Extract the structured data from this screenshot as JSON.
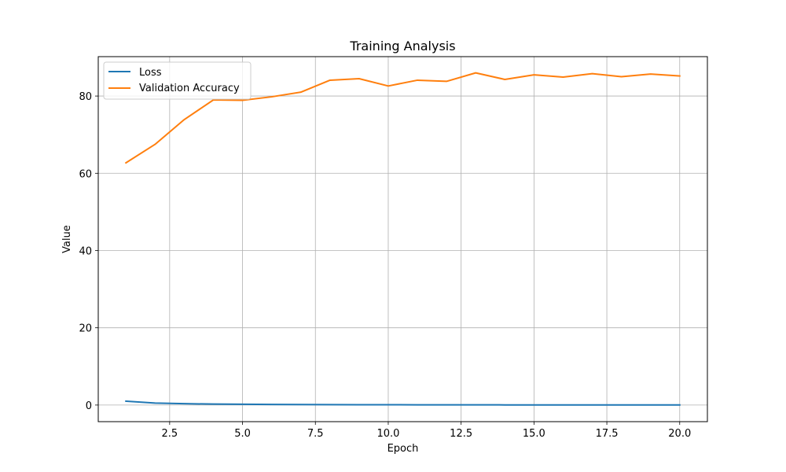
{
  "chart_data": {
    "type": "line",
    "title": "Training Analysis",
    "xlabel": "Epoch",
    "ylabel": "Value",
    "xlim": [
      0.05,
      20.95
    ],
    "ylim": [
      -4.3,
      90.2
    ],
    "xticks": [
      2.5,
      5.0,
      7.5,
      10.0,
      12.5,
      15.0,
      17.5,
      20.0
    ],
    "xtick_labels": [
      "2.5",
      "5.0",
      "7.5",
      "10.0",
      "12.5",
      "15.0",
      "17.5",
      "20.0"
    ],
    "yticks": [
      0,
      20,
      40,
      60,
      80
    ],
    "ytick_labels": [
      "0",
      "20",
      "40",
      "60",
      "80"
    ],
    "grid": true,
    "legend_position": "upper-left",
    "x": [
      1,
      2,
      3,
      4,
      5,
      6,
      7,
      8,
      9,
      10,
      11,
      12,
      13,
      14,
      15,
      16,
      17,
      18,
      19,
      20
    ],
    "series": [
      {
        "name": "Loss",
        "color": "#1f77b4",
        "values": [
          1.0,
          0.5,
          0.35,
          0.25,
          0.2,
          0.15,
          0.12,
          0.1,
          0.08,
          0.07,
          0.06,
          0.05,
          0.05,
          0.04,
          0.04,
          0.03,
          0.03,
          0.03,
          0.02,
          0.02
        ]
      },
      {
        "name": "Validation Accuracy",
        "color": "#ff7f0e",
        "values": [
          62.7,
          67.5,
          73.9,
          79.0,
          78.9,
          79.8,
          81.0,
          84.1,
          84.5,
          82.6,
          84.1,
          83.8,
          86.0,
          84.3,
          85.5,
          84.9,
          85.8,
          85.0,
          85.7,
          85.2
        ]
      }
    ]
  }
}
